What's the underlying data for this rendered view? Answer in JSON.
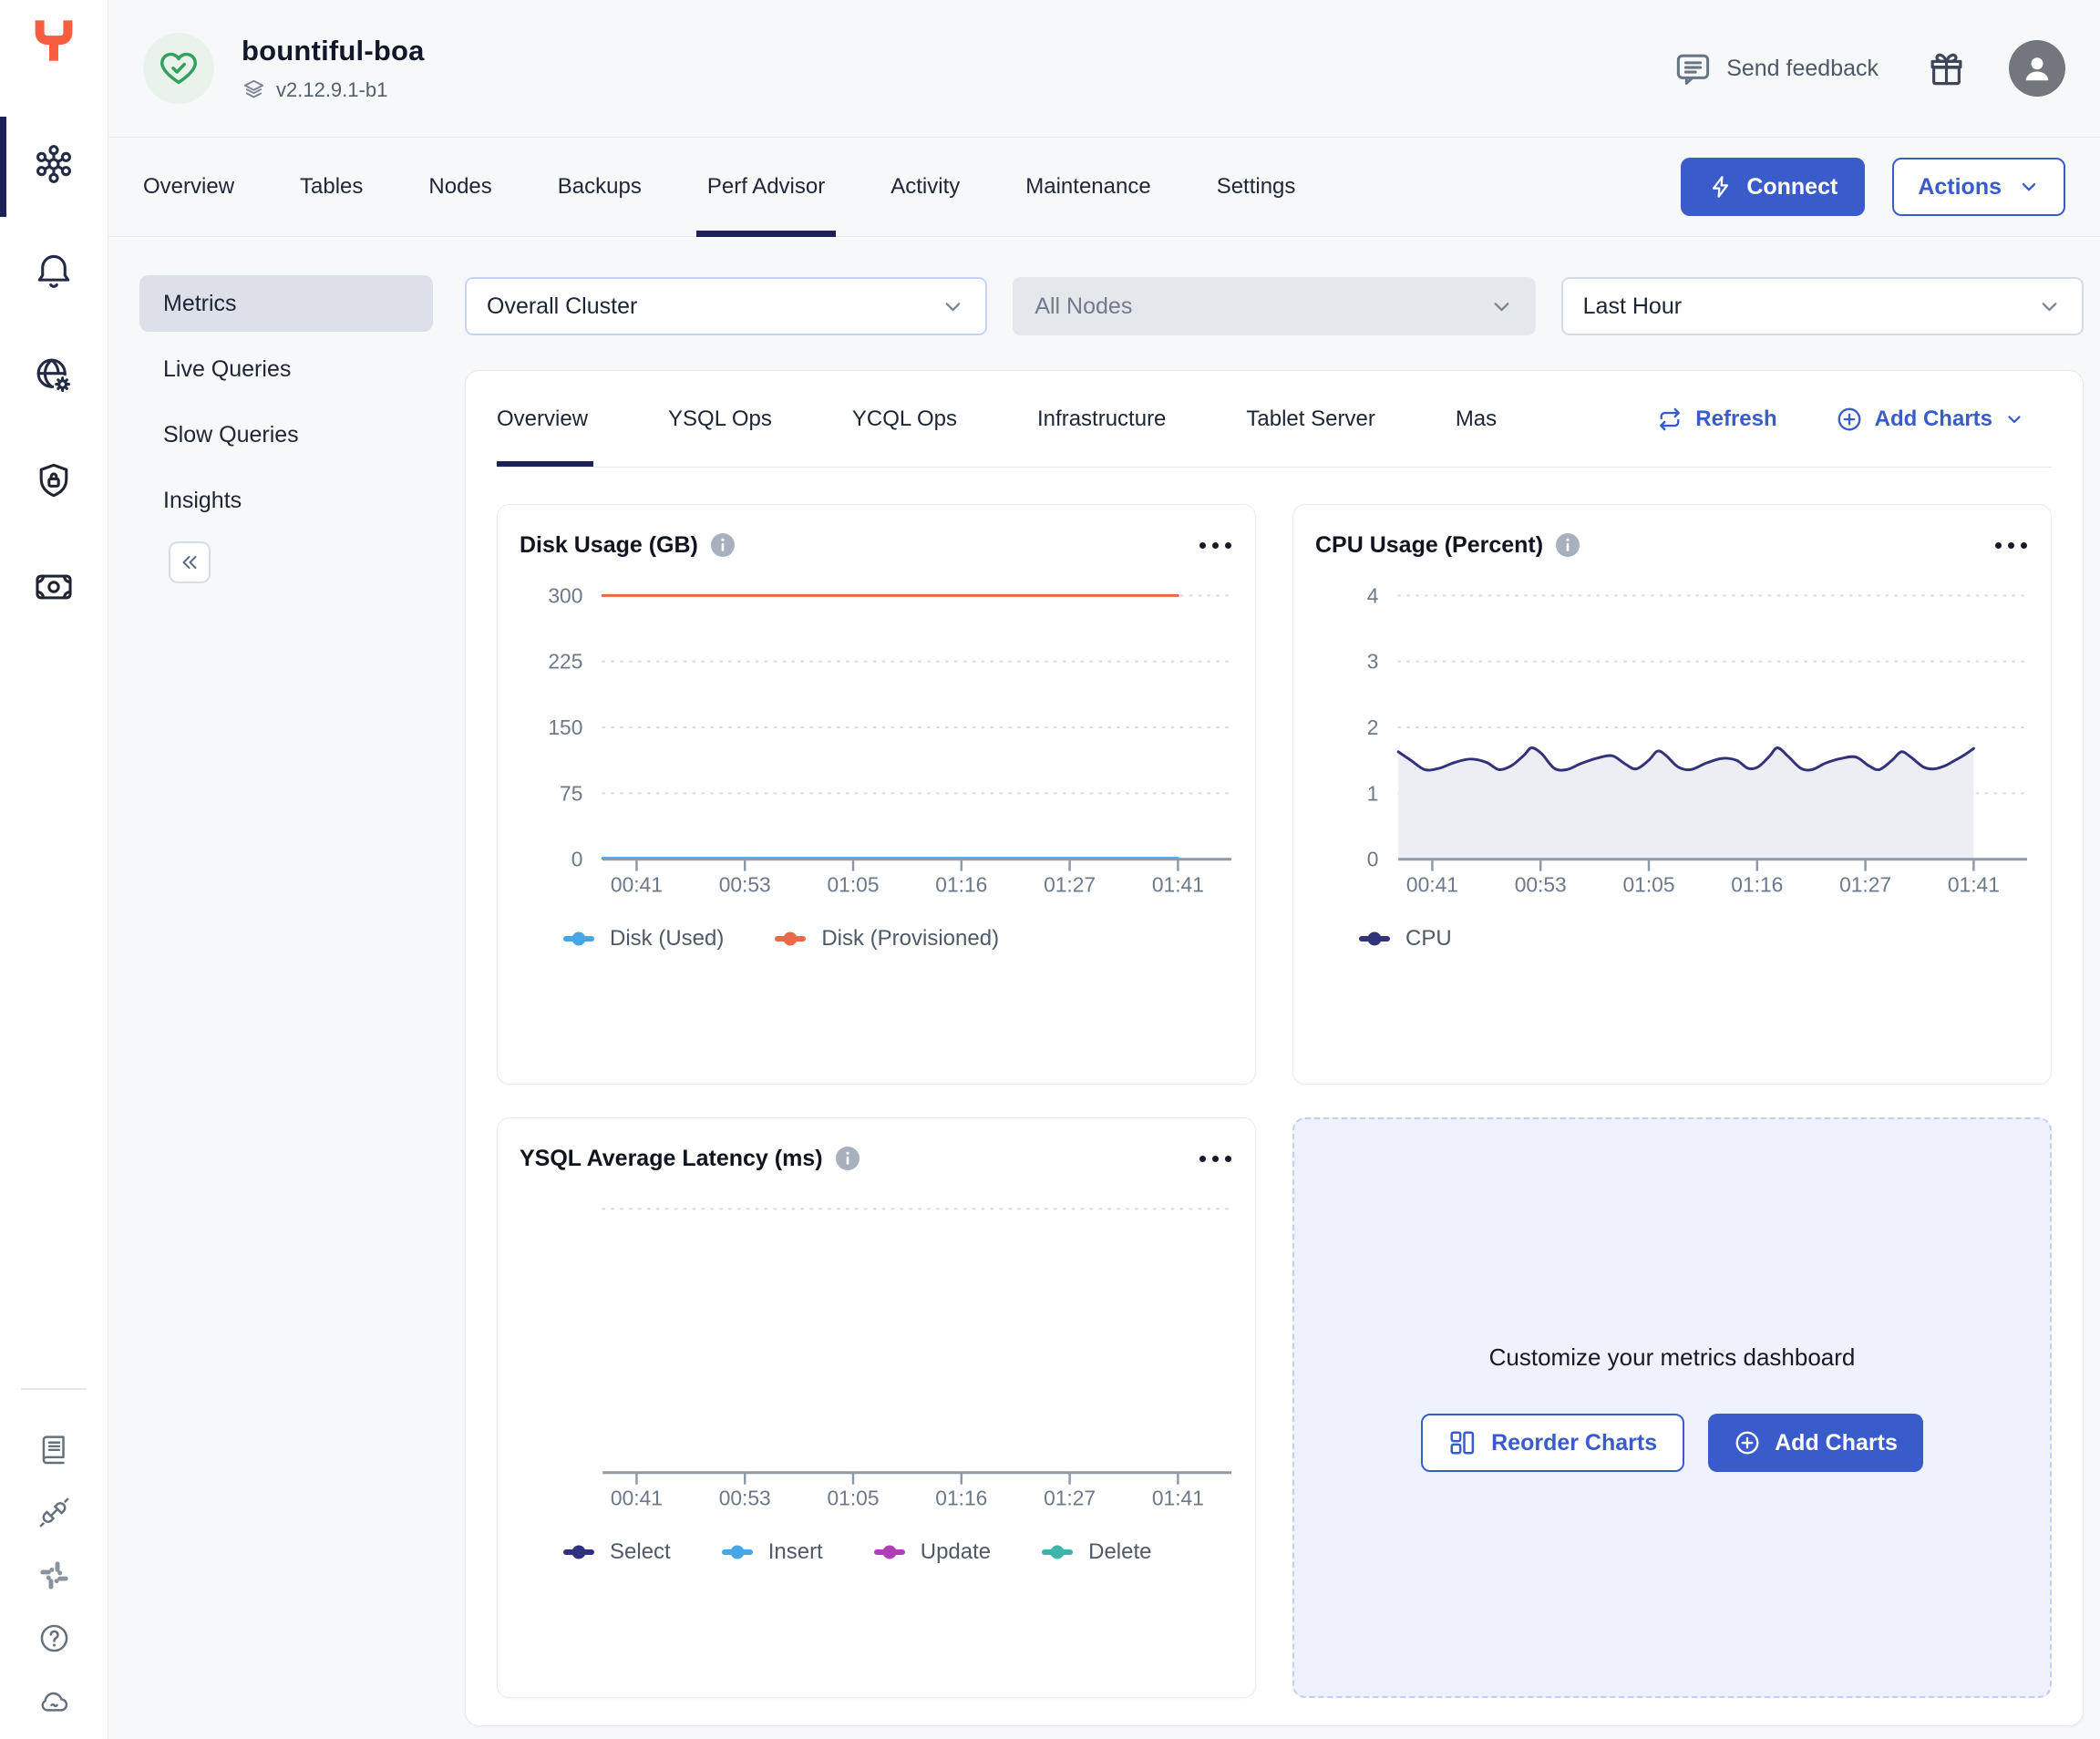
{
  "header": {
    "cluster_name": "bountiful-boa",
    "version": "v2.12.9.1-b1",
    "send_feedback": "Send feedback"
  },
  "nav_tabs": {
    "items": [
      "Overview",
      "Tables",
      "Nodes",
      "Backups",
      "Perf Advisor",
      "Activity",
      "Maintenance",
      "Settings"
    ],
    "active": "Perf Advisor"
  },
  "actions": {
    "connect": "Connect",
    "actions": "Actions"
  },
  "sidebar": {
    "items": [
      {
        "label": "Metrics",
        "active": true
      },
      {
        "label": "Live Queries",
        "active": false
      },
      {
        "label": "Slow Queries",
        "active": false
      },
      {
        "label": "Insights",
        "active": false
      }
    ]
  },
  "filters": {
    "cluster": "Overall Cluster",
    "nodes": "All Nodes",
    "range": "Last Hour"
  },
  "metrics_tabs": {
    "items": [
      "Overview",
      "YSQL Ops",
      "YCQL Ops",
      "Infrastructure",
      "Tablet Server",
      "Mas"
    ],
    "active": "Overview",
    "refresh": "Refresh",
    "add_charts": "Add Charts"
  },
  "customize": {
    "title": "Customize your metrics dashboard",
    "reorder": "Reorder Charts",
    "add": "Add Charts"
  },
  "icons": [
    "yugabyte-logo",
    "heart-check",
    "layers",
    "speech-bubble",
    "gift",
    "avatar-person",
    "cluster-network",
    "bell",
    "globe-gear",
    "shield-lock",
    "billing",
    "docs-book",
    "plug",
    "slack",
    "help-circle",
    "cloud",
    "lightning-bolt",
    "chevron-down",
    "double-chevron-left",
    "refresh",
    "plus-circle",
    "info",
    "ellipsis-menu",
    "reorder-grid"
  ],
  "colors": {
    "accent_blue": "#3a5ccb",
    "active_navy": "#1c2157",
    "brand_orange": "#f75d3f",
    "health_green": "#33a05c",
    "disk_used_blue": "#47a6e6",
    "disk_provisioned_orange": "#e9694a",
    "cpu_navy": "#32327a",
    "update_magenta": "#b03fb7",
    "delete_teal": "#3db5ab"
  },
  "chart_data": [
    {
      "id": "disk_usage",
      "type": "line",
      "title": "Disk Usage (GB)",
      "ylim": [
        0,
        300
      ],
      "yticks": [
        0,
        75,
        150,
        225,
        300
      ],
      "xticklabels": [
        "00:41",
        "00:53",
        "01:05",
        "01:16",
        "01:27",
        "01:41"
      ],
      "grid": true,
      "series": [
        {
          "name": "Disk (Used)",
          "color": "#47a6e6",
          "points": [
            [
              0,
              1.2
            ],
            [
              0.915,
              1.2
            ]
          ]
        },
        {
          "name": "Disk (Provisioned)",
          "color": "#e9694a",
          "points": [
            [
              0,
              300
            ],
            [
              0.915,
              300
            ]
          ]
        }
      ],
      "legend": [
        {
          "label": "Disk (Used)",
          "color": "#47a6e6"
        },
        {
          "label": "Disk (Provisioned)",
          "color": "#e9694a"
        }
      ]
    },
    {
      "id": "cpu_usage",
      "type": "area",
      "title": "CPU Usage (Percent)",
      "ylim": [
        0,
        4
      ],
      "yticks": [
        0,
        1,
        2,
        3,
        4
      ],
      "xticklabels": [
        "00:41",
        "00:53",
        "01:05",
        "01:16",
        "01:27",
        "01:41"
      ],
      "grid": true,
      "series": [
        {
          "name": "CPU",
          "color": "#32327a",
          "fill": "#ededf4",
          "points": [
            [
              0,
              1.63
            ],
            [
              0.02,
              1.5
            ],
            [
              0.042,
              1.36
            ],
            [
              0.065,
              1.38
            ],
            [
              0.09,
              1.47
            ],
            [
              0.115,
              1.52
            ],
            [
              0.14,
              1.47
            ],
            [
              0.16,
              1.36
            ],
            [
              0.18,
              1.42
            ],
            [
              0.2,
              1.58
            ],
            [
              0.212,
              1.69
            ],
            [
              0.228,
              1.6
            ],
            [
              0.248,
              1.38
            ],
            [
              0.268,
              1.36
            ],
            [
              0.29,
              1.45
            ],
            [
              0.315,
              1.53
            ],
            [
              0.34,
              1.57
            ],
            [
              0.36,
              1.45
            ],
            [
              0.378,
              1.37
            ],
            [
              0.398,
              1.5
            ],
            [
              0.412,
              1.64
            ],
            [
              0.425,
              1.58
            ],
            [
              0.445,
              1.4
            ],
            [
              0.465,
              1.36
            ],
            [
              0.49,
              1.46
            ],
            [
              0.515,
              1.53
            ],
            [
              0.538,
              1.5
            ],
            [
              0.556,
              1.38
            ],
            [
              0.572,
              1.4
            ],
            [
              0.59,
              1.56
            ],
            [
              0.603,
              1.69
            ],
            [
              0.62,
              1.56
            ],
            [
              0.64,
              1.38
            ],
            [
              0.658,
              1.36
            ],
            [
              0.68,
              1.46
            ],
            [
              0.705,
              1.53
            ],
            [
              0.728,
              1.55
            ],
            [
              0.748,
              1.42
            ],
            [
              0.765,
              1.36
            ],
            [
              0.785,
              1.5
            ],
            [
              0.8,
              1.63
            ],
            [
              0.815,
              1.55
            ],
            [
              0.835,
              1.4
            ],
            [
              0.852,
              1.37
            ],
            [
              0.87,
              1.42
            ],
            [
              0.885,
              1.5
            ],
            [
              0.9,
              1.58
            ],
            [
              0.915,
              1.68
            ]
          ]
        }
      ],
      "legend": [
        {
          "label": "CPU",
          "color": "#32327a"
        }
      ]
    },
    {
      "id": "ysql_average_latency",
      "type": "line",
      "title": "YSQL Average Latency (ms)",
      "ylim": [
        0,
        1
      ],
      "yticks": [],
      "top_gridline": true,
      "xticklabels": [
        "00:41",
        "00:53",
        "01:05",
        "01:16",
        "01:27",
        "01:41"
      ],
      "grid": false,
      "series": [],
      "legend": [
        {
          "label": "Select",
          "color": "#2f3180"
        },
        {
          "label": "Insert",
          "color": "#47a6e6"
        },
        {
          "label": "Update",
          "color": "#b03fb7"
        },
        {
          "label": "Delete",
          "color": "#3db5ab"
        }
      ]
    }
  ]
}
